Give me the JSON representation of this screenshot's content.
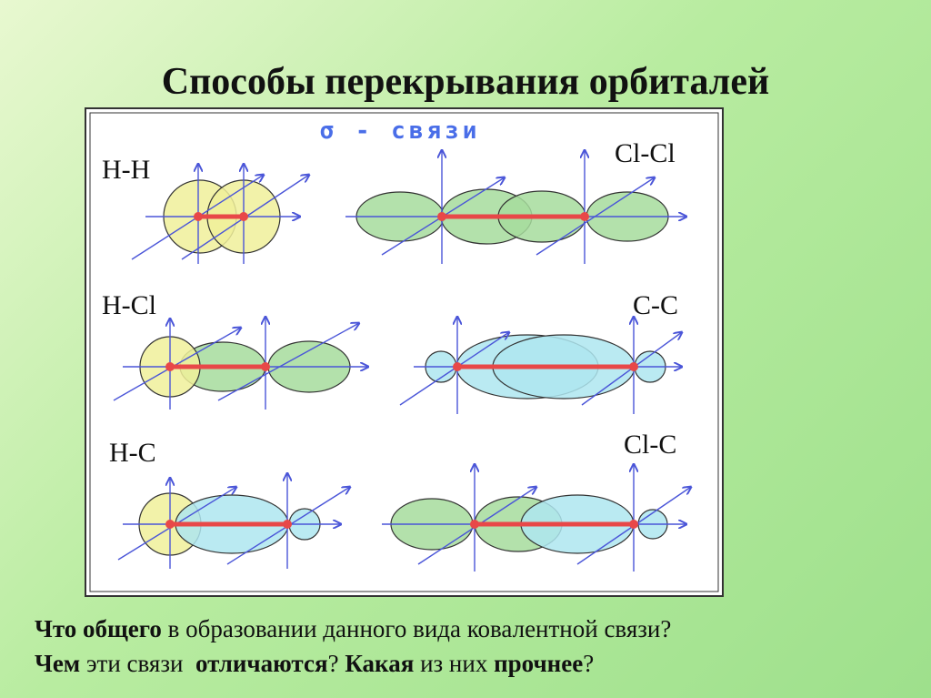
{
  "title": "Способы перекрывания орбиталей",
  "diagram": {
    "heading": "σ - связи",
    "labels": [
      "H-H",
      "Cl-Cl",
      "H-Cl",
      "C-C",
      "H-C",
      "Cl-C"
    ]
  },
  "questions": [
    [
      "Что общего",
      "в образовании данного вида ковалентной связи?"
    ],
    [
      "Чем",
      "эти связи",
      "отличаются",
      "?",
      "Какая",
      "из них",
      "прочнее",
      "?"
    ]
  ]
}
